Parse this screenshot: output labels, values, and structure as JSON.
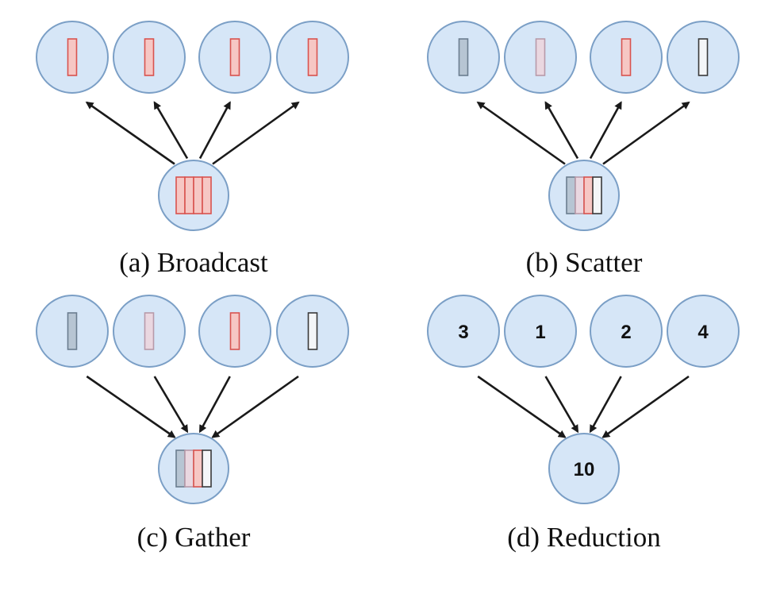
{
  "colors": {
    "node_fill": "#d6e6f7",
    "node_stroke": "#7b9fc6",
    "arrow": "#1a1a1a",
    "chunk_red_fill": "#f6c7c4",
    "chunk_red_stroke": "#d9534f",
    "chunk_gray_fill": "#b7c5d3",
    "chunk_gray_stroke": "#6b7d90",
    "chunk_pink_fill": "#ead7e0",
    "chunk_pink_stroke": "#b79aa9",
    "chunk_white_fill": "#f4f6f8",
    "chunk_white_stroke": "#3a3a3a"
  },
  "panels": [
    {
      "id": "broadcast",
      "caption": "(a) Broadcast",
      "direction": "out",
      "leaves": [
        {
          "chunks": [
            "red"
          ]
        },
        {
          "chunks": [
            "red"
          ]
        },
        {
          "chunks": [
            "red"
          ]
        },
        {
          "chunks": [
            "red"
          ]
        }
      ],
      "center": {
        "chunks": [
          "red",
          "red",
          "red",
          "red"
        ]
      }
    },
    {
      "id": "scatter",
      "caption": "(b) Scatter",
      "direction": "out",
      "leaves": [
        {
          "chunks": [
            "gray"
          ]
        },
        {
          "chunks": [
            "pink"
          ]
        },
        {
          "chunks": [
            "red"
          ]
        },
        {
          "chunks": [
            "white"
          ]
        }
      ],
      "center": {
        "chunks": [
          "gray",
          "pink",
          "red",
          "white"
        ]
      }
    },
    {
      "id": "gather",
      "caption": "(c) Gather",
      "direction": "in",
      "leaves": [
        {
          "chunks": [
            "gray"
          ]
        },
        {
          "chunks": [
            "pink"
          ]
        },
        {
          "chunks": [
            "red"
          ]
        },
        {
          "chunks": [
            "white"
          ]
        }
      ],
      "center": {
        "chunks": [
          "gray",
          "pink",
          "red",
          "white"
        ]
      }
    },
    {
      "id": "reduction",
      "caption": "(d) Reduction",
      "direction": "in",
      "leaves": [
        {
          "label": "3"
        },
        {
          "label": "1"
        },
        {
          "label": "2"
        },
        {
          "label": "4"
        }
      ],
      "center": {
        "label": "10"
      }
    }
  ]
}
